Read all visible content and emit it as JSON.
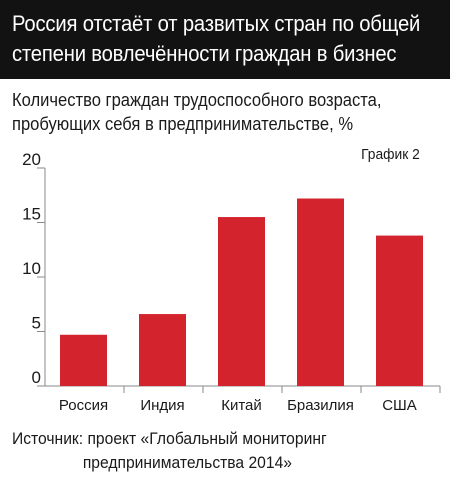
{
  "header": {
    "title_line1": "Россия отстаёт от развитых стран по общей",
    "title_line2": "степени вовлечённости граждан в бизнес"
  },
  "subtitle": {
    "line1": "Количество граждан трудоспособного возраста,",
    "line2": "пробующих себя в предпринимательстве, %"
  },
  "figure_label": "График 2",
  "source": {
    "line1": "Источник: проект «Глобальный мониторинг",
    "line2": "предпринимательства 2014»"
  },
  "colors": {
    "header_bg": "#121212",
    "bar": "#d3232c",
    "axis": "#8a8a8a"
  },
  "chart_data": {
    "type": "bar",
    "categories": [
      "Россия",
      "Индия",
      "Китай",
      "Бразилия",
      "США"
    ],
    "values": [
      4.7,
      6.6,
      15.5,
      17.2,
      13.8
    ],
    "ylim": [
      0,
      20
    ],
    "yticks": [
      0,
      5,
      10,
      15,
      20
    ],
    "grid": false
  }
}
